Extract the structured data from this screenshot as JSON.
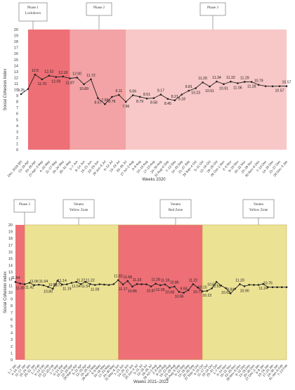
{
  "colors": {
    "phase1": "#ee6f76",
    "phase2": "#f3a3a5",
    "phase3": "#f8c7c7",
    "red_zone": "#ee6f76",
    "yellow_zone": "#ece294",
    "line": "#222222",
    "axis_text": "#333333"
  },
  "chart_data": [
    {
      "type": "line",
      "ylabel": "Social Cohesion Index",
      "xlabel": "Weeks 2020",
      "ylim": [
        0,
        20
      ],
      "yticks": [
        0,
        1,
        2,
        3,
        4,
        5,
        6,
        7,
        8,
        9,
        10,
        11,
        12,
        13,
        14,
        15,
        16,
        17,
        18,
        19,
        20
      ],
      "phase_labels": [
        {
          "text": "Phase 1\nLockdown",
          "zone": "phase1"
        },
        {
          "text": "Phase 2",
          "zone": "phase2"
        },
        {
          "text": "Phase 3",
          "zone": "phase3"
        }
      ],
      "bands": [
        {
          "zone": "phase1",
          "from": 1,
          "to": 7
        },
        {
          "zone": "phase2",
          "from": 7,
          "to": 15
        },
        {
          "zone": "phase3",
          "from": 15,
          "to": 38
        }
      ],
      "categories": [
        "Dec. 2019 (t0)",
        "13–19 Apr",
        "20–26 Apr",
        "27 Apr–3 May",
        "4–10 May",
        "11–17 May",
        "18–24 May",
        "25–31 May",
        "1–7 Jun",
        "8–14 Jun",
        "15–21 Jun",
        "22–28 Jun",
        "29 Jun–5 Jul",
        "6–12 Jul",
        "13–19 Jul",
        "20–26 Jul",
        "27 Jul–2 Aug",
        "3–9 Aug",
        "10–16 Aug",
        "17–23 Aug",
        "24–30 Aug",
        "31 Aug–6 Sep",
        "7–13 Sep",
        "14–20 Sep",
        "21–27 Sep",
        "28 Sep–4 Oct",
        "5–11 Oct",
        "12–18 Oct",
        "19–25 Oct",
        "26 Oct–1 Nov",
        "2–8 Nov",
        "9–15 Nov",
        "16–22 Nov",
        "23–29 Nov",
        "30 Nov–6 Dec",
        "7–13 Dec",
        "14–20 Dec",
        "21–27 Dec",
        "28 Dec–3 Jan"
      ],
      "values": [
        9.25,
        10.1,
        12.5,
        11.7,
        12.32,
        12.09,
        12.18,
        11.87,
        12.0,
        10.89,
        11.72,
        8.57,
        7.58,
        8.78,
        9.11,
        7.96,
        9.06,
        8.79,
        8.51,
        8.58,
        9.17,
        8.45,
        8.21,
        9.18,
        9.81,
        10.23,
        11.2,
        10.51,
        11.34,
        10.91,
        11.32,
        11.06,
        11.29,
        11.28,
        10.79,
        10.57,
        10.55,
        10.57,
        10.57
      ],
      "value_labels": [
        "9.25",
        "",
        "12.5",
        "11.70",
        "12.32",
        "12.09",
        "12.18",
        "11.87",
        "12.00",
        "10.89",
        "11.72",
        "8.57",
        "7.58",
        "8.78",
        "9.11",
        "7.96",
        "9.06",
        "8.79",
        "8.51",
        "8.58",
        "9.17",
        "8.45",
        "8.21",
        "9.18",
        "9.81",
        "10.23",
        "11.20",
        "10.51",
        "11.34",
        "10.91",
        "11.32",
        "11.06",
        "11.29",
        "11.28",
        "10.79",
        "",
        "",
        "10.57",
        "10.57"
      ]
    },
    {
      "type": "line",
      "ylabel": "Social Cohesion Index",
      "xlabel": "Weeks 2021–2022",
      "ylim": [
        0,
        20
      ],
      "yticks": [
        0,
        1,
        2,
        3,
        4,
        5,
        6,
        7,
        8,
        9,
        10,
        11,
        12,
        13,
        14,
        15,
        16,
        17,
        18,
        19,
        20
      ],
      "phase_labels": [
        {
          "text": "Phase 3",
          "zone": "phase3"
        },
        {
          "text": "Veneto\nYellow Zone",
          "zone": "yellow"
        },
        {
          "text": "Veneto\nRed Zone",
          "zone": "red"
        },
        {
          "text": "Veneto\nYellow Zone",
          "zone": "yellow"
        }
      ],
      "bands": [
        {
          "zone": "phase3band",
          "from": 0,
          "to": 2
        },
        {
          "zone": "yellow",
          "from": 2,
          "to": 22
        },
        {
          "zone": "red",
          "from": 22,
          "to": 40
        },
        {
          "zone": "yellow",
          "from": 40,
          "to": 58
        }
      ],
      "categories": [
        "1–7 Jan",
        "4–10 Jan",
        "11–17 Jan",
        "18–24 Jan",
        "25–31 Jan",
        "1–7 Feb",
        "8–14 Feb",
        "15–21 Feb",
        "22–28 Feb",
        "1–7 Mar",
        "8–14 Mar",
        "15–21 Mar",
        "22–28 Mar",
        "29 Mar–4 Apr",
        "5–11 Apr",
        "12–18 Apr",
        "19–25 Apr",
        "26 Apr–2 May",
        "3–9 May",
        "10–16 May",
        "17–23 May",
        "24–30 May",
        "31 May–6 Jun",
        "7–13 Jun",
        "14–20 Jun",
        "21–27 Jun",
        "28 Jun–4 Jul",
        "5–11 Jul",
        "12–18 Jul",
        "19–25 Jul",
        "26 Jul–1 Aug",
        "2–8 Aug",
        "9–15 Aug",
        "16–22 Aug",
        "23–29 Aug",
        "30 Aug–5 Sep",
        "6–12 Sep",
        "13–19 Sep",
        "20–26 Sep",
        "27 Sep–3 Oct",
        "4–10 Oct",
        "11–17 Oct",
        "18–24 Oct",
        "25–31 Oct",
        "1–7 Nov",
        "8–14 Nov",
        "15–21 Nov",
        "22–28 Nov",
        "29 Nov–5 Dec",
        "6–12 Dec",
        "13–19 Dec",
        "20–26 Dec",
        "27 Dec–2 Jan",
        "3–9 Jan",
        "10–16 Jan",
        "17–23 Jan",
        "24–30 Jan",
        "31 Jan–6 Feb",
        "7–13 Feb"
      ],
      "values": [
        11.54,
        11.3,
        11.2,
        11.42,
        11.06,
        11.13,
        11.04,
        10.8,
        10.54,
        11.73,
        11.14,
        11.19,
        11.4,
        11.54,
        11.22,
        11.54,
        11.22,
        11.09,
        11.2,
        11.15,
        11.09,
        11.21,
        11.82,
        11.17,
        11.68,
        10.85,
        11.23,
        11.2,
        11.19,
        10.87,
        11.28,
        11.05,
        11.18,
        10.68,
        10.86,
        10.06,
        9.93,
        10.32,
        11.22,
        10.71,
        10.15,
        10.22,
        10.58,
        11.55,
        11.0,
        10.62,
        9.84,
        10.53,
        11.2,
        10.9,
        11.12,
        11.1,
        11.1,
        11.24,
        10.76,
        10.76,
        10.76,
        10.76,
        10.76
      ],
      "value_labels": [
        "11.54",
        "11.30",
        "",
        "11.42",
        "11.06",
        "",
        "11.04",
        "10.80",
        "10.54",
        "11.73",
        "11.14",
        "11.19",
        "",
        "11.54",
        "11.22",
        "11.54",
        "11.22",
        "11.09",
        "",
        "",
        "",
        "",
        "11.82",
        "11.17",
        "11.68",
        "10.85",
        "11.23",
        "",
        "",
        "10.87",
        "11.28",
        "11.05",
        "11.18",
        "10.68",
        "10.86",
        "10.06",
        "9.93",
        "",
        "11.22",
        "10.71",
        "10.15",
        "10.22",
        "10.58",
        "11.55",
        "",
        "10.62",
        "9.84",
        "",
        "11.20",
        "10.90",
        "",
        "",
        "",
        "11.24",
        "10.76",
        "",
        "",
        "",
        ""
      ]
    }
  ]
}
